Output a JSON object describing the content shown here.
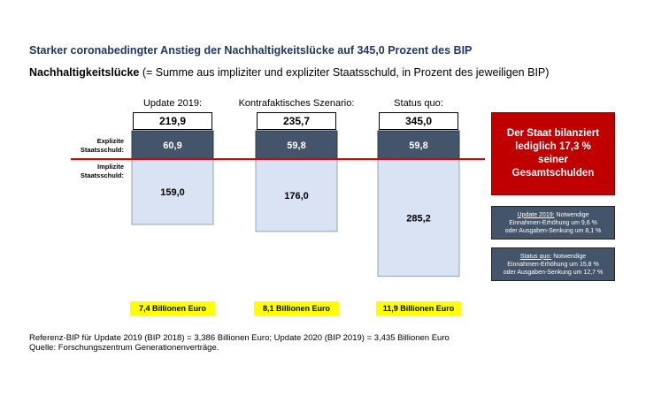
{
  "title": "Starker coronabedingter Anstieg der Nachhaltigkeitslücke auf 345,0 Prozent des BIP",
  "subtitle": {
    "bold": "Nachhaltigkeitslücke",
    "rest": " (= Summe aus impliziter und expliziter Staatsschuld, in Prozent des jeweiligen BIP)"
  },
  "side_labels": {
    "explicit": [
      "Explizite",
      "Staatsschuld:"
    ],
    "implicit": [
      "Implizite",
      "Staatsschuld:"
    ]
  },
  "colors": {
    "explicit": "#44546a",
    "implicit": "#dae3f3",
    "zero_line": "#e00000",
    "highlight": "#ffff00",
    "alert": "#c00000"
  },
  "chart_data": {
    "type": "bar",
    "stacked": true,
    "title": "Nachhaltigkeitslücke",
    "ylabel": "Prozent des BIP",
    "categories": [
      "Update 2019:",
      "Kontrafaktisches Szenario:",
      "Status quo:"
    ],
    "series": [
      {
        "name": "Explizite Staatsschuld",
        "values": [
          60.9,
          59.8,
          59.8
        ],
        "labels": [
          "60,9",
          "59,8",
          "59,8"
        ]
      },
      {
        "name": "Implizite Staatsschuld",
        "values": [
          159.0,
          176.0,
          285.2
        ],
        "labels": [
          "159,0",
          "176,0",
          "285,2"
        ]
      }
    ],
    "totals": [
      219.9,
      235.7,
      345.0
    ],
    "total_labels": [
      "219,9",
      "235,7",
      "345,0"
    ],
    "euro_labels": [
      "7,4 Billionen Euro",
      "8,1 Billionen Euro",
      "11,9 Billionen Euro"
    ]
  },
  "red_box": "Der Staat bilanziert lediglich 17,3 % seiner Gesamtschulden",
  "notes": [
    {
      "head": "Update 2019:",
      "rest": " Notwendige",
      "line2": "Einnahmen-Erhöhung um 9,6 %",
      "line3": "oder Ausgaben-Senkung um 8,1 %"
    },
    {
      "head": "Status quo:",
      "rest": " Notwendige",
      "line2": "Einnahmen-Erhöhung um 15,8 %",
      "line3": "oder Ausgaben-Senkung um 12,7 %"
    }
  ],
  "footnote": [
    "Referenz-BIP für Update 2019 (BIP 2018) = 3,386 Billionen Euro; Update 2020 (BIP 2019) = 3,435 Billionen Euro",
    "Quelle: Forschungszentrum Generationenverträge."
  ]
}
